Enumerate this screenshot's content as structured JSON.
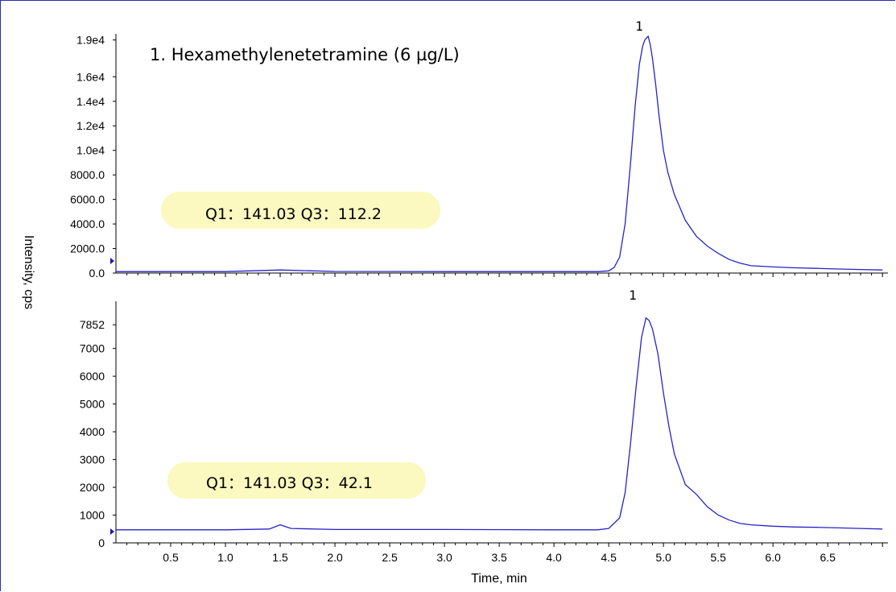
{
  "chart_data": [
    {
      "type": "line",
      "title": "1. Hexamethylenetetramine (6 µg/L)",
      "annotation": "Q1：141.03 Q3：112.2",
      "peak_label": "1",
      "ylabel": "Intensity, cps",
      "ylim": [
        0,
        19500
      ],
      "y_ticks": [
        {
          "v": 0,
          "label": "0.0"
        },
        {
          "v": 2000,
          "label": "2000.0"
        },
        {
          "v": 4000,
          "label": "4000.0"
        },
        {
          "v": 6000,
          "label": "6000.0"
        },
        {
          "v": 8000,
          "label": "8000.0"
        },
        {
          "v": 10000,
          "label": "1.0e4"
        },
        {
          "v": 12000,
          "label": "1.2e4"
        },
        {
          "v": 14000,
          "label": "1.4e4"
        },
        {
          "v": 16000,
          "label": "1.6e4"
        },
        {
          "v": 19000,
          "label": "1.9e4"
        }
      ],
      "x": [
        0,
        1.0,
        1.5,
        2.0,
        3.0,
        4.0,
        4.4,
        4.5,
        4.55,
        4.6,
        4.65,
        4.7,
        4.74,
        4.78,
        4.81,
        4.83,
        4.86,
        4.88,
        4.9,
        4.93,
        4.96,
        5.0,
        5.04,
        5.1,
        5.2,
        5.3,
        5.4,
        5.5,
        5.6,
        5.7,
        5.8,
        6.0,
        6.2,
        6.4,
        6.6,
        6.8,
        7.0
      ],
      "y": [
        120,
        120,
        250,
        130,
        120,
        120,
        120,
        180,
        450,
        1300,
        4000,
        9000,
        13500,
        17000,
        18500,
        19000,
        19300,
        18600,
        17500,
        15300,
        12800,
        10000,
        8200,
        6400,
        4300,
        3000,
        2200,
        1600,
        1100,
        800,
        600,
        500,
        430,
        380,
        330,
        290,
        250
      ]
    },
    {
      "type": "line",
      "annotation": "Q1：141.03 Q3：42.1",
      "peak_label": "1",
      "xlabel": "Time, min",
      "ylim": [
        0,
        8700
      ],
      "y_ticks": [
        {
          "v": 0,
          "label": "0"
        },
        {
          "v": 1000,
          "label": "1000"
        },
        {
          "v": 2000,
          "label": "2000"
        },
        {
          "v": 3000,
          "label": "3000"
        },
        {
          "v": 4000,
          "label": "4000"
        },
        {
          "v": 5000,
          "label": "5000"
        },
        {
          "v": 6000,
          "label": "6000"
        },
        {
          "v": 7000,
          "label": "7000"
        },
        {
          "v": 7852,
          "label": "7852"
        }
      ],
      "xlim": [
        0,
        7.05
      ],
      "x_ticks": [
        {
          "v": 0.5,
          "label": "0.5"
        },
        {
          "v": 1.0,
          "label": "1.0"
        },
        {
          "v": 1.5,
          "label": "1.5"
        },
        {
          "v": 2.0,
          "label": "2.0"
        },
        {
          "v": 2.5,
          "label": "2.5"
        },
        {
          "v": 3.0,
          "label": "3.0"
        },
        {
          "v": 3.5,
          "label": "3.5"
        },
        {
          "v": 4.0,
          "label": "4.0"
        },
        {
          "v": 4.5,
          "label": "4.5"
        },
        {
          "v": 5.0,
          "label": "5.0"
        },
        {
          "v": 5.5,
          "label": "5.5"
        },
        {
          "v": 6.0,
          "label": "6.0"
        },
        {
          "v": 6.5,
          "label": "6.5"
        }
      ],
      "x": [
        0,
        1.0,
        1.4,
        1.5,
        1.6,
        2.0,
        3.0,
        4.0,
        4.4,
        4.5,
        4.6,
        4.65,
        4.7,
        4.75,
        4.8,
        4.84,
        4.87,
        4.9,
        4.95,
        5.0,
        5.05,
        5.1,
        5.2,
        5.3,
        5.4,
        5.5,
        5.6,
        5.7,
        5.8,
        6.0,
        6.2,
        6.4,
        6.6,
        6.8,
        7.0
      ],
      "y": [
        470,
        470,
        500,
        650,
        520,
        480,
        480,
        470,
        470,
        520,
        900,
        1800,
        3600,
        5600,
        7400,
        8100,
        8000,
        7700,
        6800,
        5400,
        4200,
        3200,
        2100,
        1750,
        1300,
        1000,
        820,
        700,
        650,
        600,
        570,
        560,
        540,
        520,
        500
      ]
    }
  ]
}
